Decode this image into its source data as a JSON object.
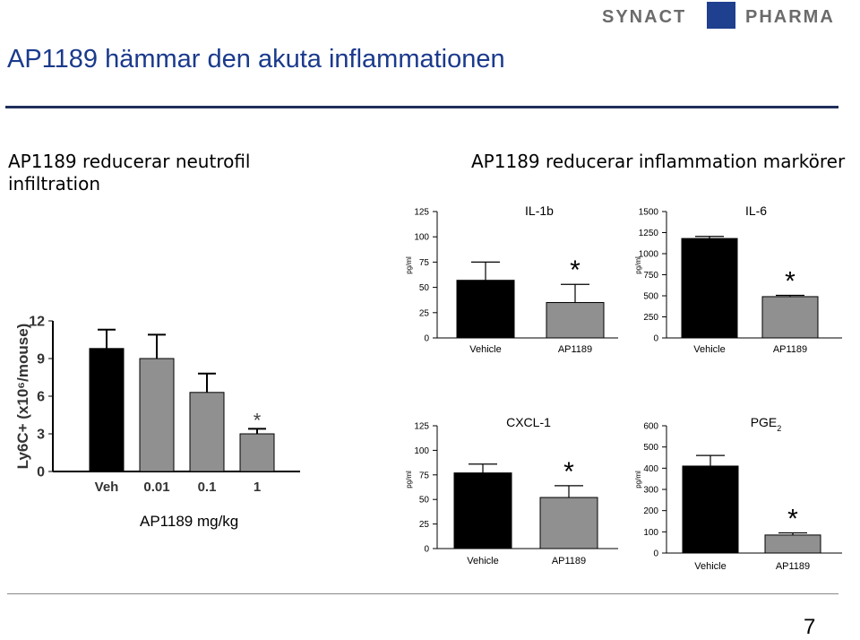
{
  "slide": {
    "title": "AP1189 hämmar den akuta inflammationen",
    "left_heading": "AP1189 reducerar neutrofil infiltration",
    "right_heading": "AP1189 reducerar inflammation markörer",
    "left_caption": "AP1189 mg/kg",
    "page_number": "7",
    "logo": {
      "left": "SYNACT",
      "right": "PHARMA",
      "mark_color": "#1f3f8f",
      "text_color": "#6b6b6b"
    }
  },
  "colors": {
    "black_bar": "#000000",
    "gray_bar": "#909090",
    "title": "#1a3a8c"
  },
  "chart_data": [
    {
      "id": "ly6c",
      "type": "bar",
      "title": "",
      "xlabel": "",
      "ylabel": "Ly6C+ (x10⁶/mouse)",
      "categories": [
        "Veh",
        "0.01",
        "0.1",
        "1"
      ],
      "values": [
        9.8,
        9.0,
        6.3,
        3.0
      ],
      "errors": [
        1.5,
        1.9,
        1.5,
        0.4
      ],
      "bar_colors": [
        "#000000",
        "#909090",
        "#909090",
        "#909090"
      ],
      "significant": [
        false,
        false,
        false,
        true
      ],
      "yticks": [
        "0",
        "3",
        "6",
        "9",
        "12"
      ],
      "ylim": [
        0,
        12
      ]
    },
    {
      "id": "il1b",
      "type": "bar",
      "title": "IL-1b",
      "ylabel": "pg/ml",
      "categories": [
        "Vehicle",
        "AP1189"
      ],
      "values": [
        57,
        35
      ],
      "errors": [
        18,
        18
      ],
      "bar_colors": [
        "#000000",
        "#909090"
      ],
      "significant": [
        false,
        true
      ],
      "yticks": [
        "0",
        "25",
        "50",
        "75",
        "100",
        "125"
      ],
      "ylim": [
        0,
        125
      ]
    },
    {
      "id": "il6",
      "type": "bar",
      "title": "IL-6",
      "ylabel": "pg/ml",
      "categories": [
        "Vehicle",
        "AP1189"
      ],
      "values": [
        1180,
        490
      ],
      "errors": [
        25,
        15
      ],
      "bar_colors": [
        "#000000",
        "#909090"
      ],
      "significant": [
        false,
        true
      ],
      "yticks": [
        "0",
        "250",
        "500",
        "750",
        "1000",
        "1250",
        "1500"
      ],
      "ylim": [
        0,
        1500
      ]
    },
    {
      "id": "cxcl1",
      "type": "bar",
      "title": "CXCL-1",
      "ylabel": "pg/ml",
      "categories": [
        "Vehicle",
        "AP1189"
      ],
      "values": [
        77,
        52
      ],
      "errors": [
        9,
        12
      ],
      "bar_colors": [
        "#000000",
        "#909090"
      ],
      "significant": [
        false,
        true
      ],
      "yticks": [
        "0",
        "25",
        "50",
        "75",
        "100",
        "125"
      ],
      "ylim": [
        0,
        125
      ]
    },
    {
      "id": "pge2",
      "type": "bar",
      "title": "PGE",
      "title_sub": "2",
      "ylabel": "pg/ml",
      "categories": [
        "Vehicle",
        "AP1189"
      ],
      "values": [
        410,
        85
      ],
      "errors": [
        50,
        10
      ],
      "bar_colors": [
        "#000000",
        "#909090"
      ],
      "significant": [
        false,
        true
      ],
      "yticks": [
        "0",
        "100",
        "200",
        "300",
        "400",
        "500",
        "600"
      ],
      "ylim": [
        0,
        600
      ]
    }
  ]
}
